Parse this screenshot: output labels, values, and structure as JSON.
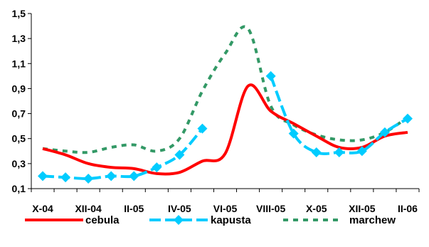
{
  "chart_data": {
    "type": "line",
    "title": "",
    "xlabel": "",
    "ylabel": "",
    "ylim": [
      0.1,
      1.5
    ],
    "yticks": [
      "0,1",
      "0,3",
      "0,5",
      "0,7",
      "0,9",
      "1,1",
      "1,3",
      "1,5"
    ],
    "yticks_values": [
      0.1,
      0.3,
      0.5,
      0.7,
      0.9,
      1.1,
      1.3,
      1.5
    ],
    "xticks": [
      "X-04",
      "XII-04",
      "II-05",
      "IV-05",
      "VI-05",
      "VIII-05",
      "X-05",
      "XII-05",
      "II-06"
    ],
    "x": [
      "X-04",
      "XI-04",
      "XII-04",
      "I-05",
      "II-05",
      "III-05",
      "IV-05",
      "V-05",
      "VI-05",
      "VII-05",
      "VIII-05",
      "IX-05",
      "X-05",
      "XI-05",
      "XII-05",
      "I-06",
      "II-06"
    ],
    "grid": false,
    "legend_position": "bottom",
    "series": [
      {
        "name": "cebula",
        "color": "#ff0000",
        "style": "solid",
        "values": [
          0.42,
          0.37,
          0.3,
          0.27,
          0.26,
          0.22,
          0.23,
          0.32,
          0.38,
          0.92,
          0.72,
          0.62,
          0.52,
          0.43,
          0.43,
          0.52,
          0.55
        ]
      },
      {
        "name": "kapusta",
        "color": "#00ccff",
        "style": "dashed",
        "marker": "diamond",
        "values": [
          0.2,
          0.19,
          0.18,
          0.2,
          0.2,
          0.27,
          0.37,
          0.58,
          null,
          null,
          1.0,
          0.54,
          0.39,
          0.39,
          0.4,
          0.55,
          0.66
        ]
      },
      {
        "name": "marchew",
        "color": "#339966",
        "style": "dotted",
        "values": [
          0.42,
          0.4,
          0.39,
          0.43,
          0.45,
          0.4,
          0.5,
          0.88,
          1.18,
          1.38,
          0.76,
          0.61,
          0.53,
          0.49,
          0.49,
          0.55,
          0.67
        ]
      }
    ]
  }
}
